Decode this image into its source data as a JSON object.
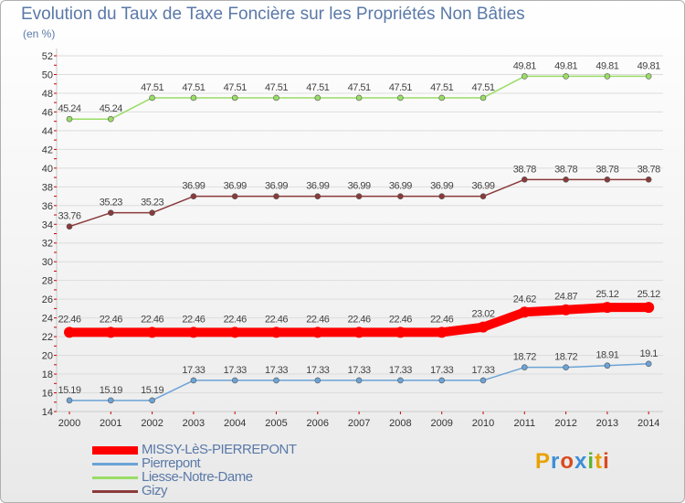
{
  "title": "Evolution du Taux de Taxe Foncière sur les Propriétés Non Bâties",
  "subtitle": "(en %)",
  "logo": "Proxiti",
  "chart_data": {
    "type": "line",
    "title": "Evolution du Taux de Taxe Foncière sur les Propriétés Non Bâties",
    "ylabel": "(en %)",
    "xlabel": "",
    "ylim": [
      14,
      52
    ],
    "yticks": [
      14,
      16,
      18,
      20,
      22,
      24,
      26,
      28,
      30,
      32,
      34,
      36,
      38,
      40,
      42,
      44,
      46,
      48,
      50,
      52
    ],
    "categories": [
      "2000",
      "2001",
      "2002",
      "2003",
      "2004",
      "2005",
      "2006",
      "2007",
      "2008",
      "2009",
      "2010",
      "2011",
      "2012",
      "2013",
      "2014"
    ],
    "legend_position": "bottom-left",
    "series": [
      {
        "name": "MISSY-LèS-PIERREPONT",
        "color": "#ff0000",
        "values": [
          22.46,
          22.46,
          22.46,
          22.46,
          22.46,
          22.46,
          22.46,
          22.46,
          22.46,
          22.46,
          23.02,
          24.62,
          24.87,
          25.12,
          25.12
        ],
        "labels": [
          "22.46",
          "22.46",
          "22.46",
          "22.46",
          "22.46",
          "22.46",
          "22.46",
          "22.46",
          "22.46",
          "22.46",
          "23.02",
          "24.62",
          "24.87",
          "25.12",
          "25.12"
        ]
      },
      {
        "name": "Pierrepont",
        "color": "#6ba3d6",
        "values": [
          15.19,
          15.19,
          15.19,
          17.33,
          17.33,
          17.33,
          17.33,
          17.33,
          17.33,
          17.33,
          17.33,
          18.72,
          18.72,
          18.91,
          19.1
        ],
        "labels": [
          "15.19",
          "15.19",
          "15.19",
          "17.33",
          "17.33",
          "17.33",
          "17.33",
          "17.33",
          "17.33",
          "17.33",
          "17.33",
          "18.72",
          "18.72",
          "18.91",
          "19.1"
        ]
      },
      {
        "name": "Liesse-Notre-Dame",
        "color": "#99dd66",
        "values": [
          45.24,
          45.24,
          47.51,
          47.51,
          47.51,
          47.51,
          47.51,
          47.51,
          47.51,
          47.51,
          47.51,
          49.81,
          49.81,
          49.81,
          49.81
        ],
        "labels": [
          "45.24",
          "45.24",
          "47.51",
          "47.51",
          "47.51",
          "47.51",
          "47.51",
          "47.51",
          "47.51",
          "47.51",
          "47.51",
          "49.81",
          "49.81",
          "49.81",
          "49.81"
        ]
      },
      {
        "name": "Gizy",
        "color": "#8a3a3a",
        "values": [
          33.76,
          35.23,
          35.23,
          36.99,
          36.99,
          36.99,
          36.99,
          36.99,
          36.99,
          36.99,
          36.99,
          38.78,
          38.78,
          38.78,
          38.78
        ],
        "labels": [
          "33.76",
          "35.23",
          "35.23",
          "36.99",
          "36.99",
          "36.99",
          "36.99",
          "36.99",
          "36.99",
          "36.99",
          "36.99",
          "38.78",
          "38.78",
          "38.78",
          "38.78"
        ]
      }
    ]
  }
}
